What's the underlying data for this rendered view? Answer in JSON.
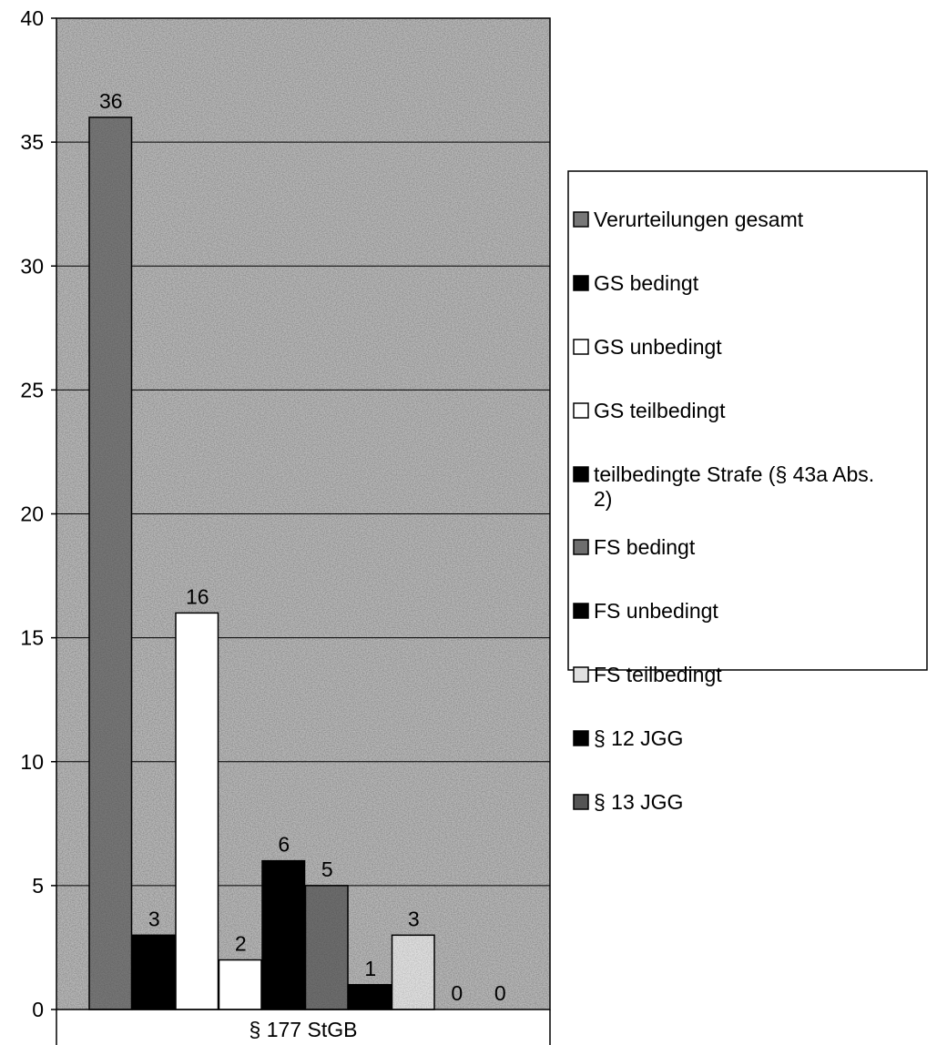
{
  "chart_data": {
    "type": "bar",
    "categories": [
      "§ 177 StGB"
    ],
    "series": [
      {
        "name": "Verurteilungen gesamt",
        "values": [
          36
        ],
        "color": "#777777"
      },
      {
        "name": "GS bedingt",
        "values": [
          3
        ],
        "color": "#000000"
      },
      {
        "name": "GS unbedingt",
        "values": [
          16
        ],
        "color": "#ffffff"
      },
      {
        "name": "GS teilbedingt",
        "values": [
          2
        ],
        "color": "#ffffff"
      },
      {
        "name": "teilbedingte Strafe (§ 43a Abs. 2)",
        "values": [
          6
        ],
        "color": "#000000"
      },
      {
        "name": "FS bedingt",
        "values": [
          5
        ],
        "color": "#6e6e6e"
      },
      {
        "name": "FS unbedingt",
        "values": [
          1
        ],
        "color": "#000000"
      },
      {
        "name": "FS teilbedingt",
        "values": [
          3
        ],
        "color": "#e0e0e0"
      },
      {
        "name": "§ 12 JGG",
        "values": [
          0
        ],
        "color": "#000000"
      },
      {
        "name": "§ 13 JGG",
        "values": [
          0
        ],
        "color": "#555555"
      }
    ],
    "ylim": [
      0,
      40
    ],
    "yticks": [
      0,
      5,
      10,
      15,
      20,
      25,
      30,
      35,
      40
    ],
    "grid": true,
    "legend": "right",
    "data_labels": true,
    "title": "",
    "xlabel": "",
    "ylabel": ""
  },
  "colors": {
    "plot_background": "#b8b8b8",
    "gridline": "#000000",
    "axis": "#000000"
  }
}
